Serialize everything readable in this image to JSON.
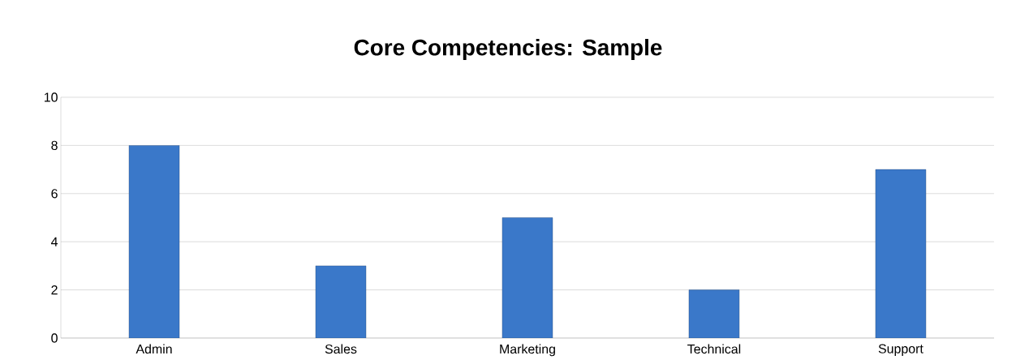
{
  "chart_data": {
    "type": "bar",
    "title": "Core Competencies: Sample",
    "categories": [
      "Admin",
      "Sales",
      "Marketing",
      "Technical",
      "Support"
    ],
    "values": [
      8,
      3,
      5,
      2,
      7
    ],
    "color": "#3a78c9",
    "ylim": [
      0,
      10
    ],
    "yticks": [
      0,
      2,
      4,
      6,
      8,
      10
    ],
    "grid": "y"
  }
}
